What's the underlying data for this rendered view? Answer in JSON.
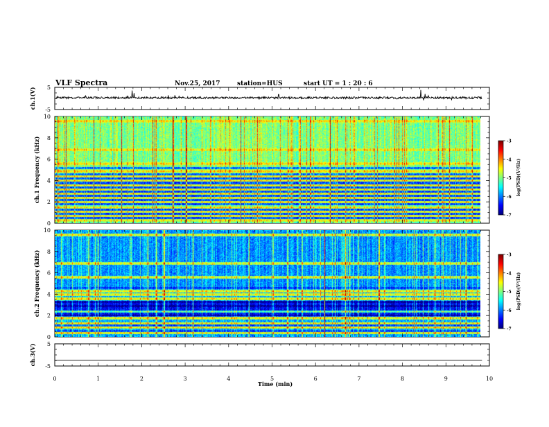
{
  "header": {
    "title": "VLF Spectra",
    "date": "Nov.25, 2017",
    "station": "station=HUS",
    "start": "start  UT =   1 : 20 : 6"
  },
  "chart_data": [
    {
      "type": "line",
      "name": "panel-ch1-waveform",
      "ylabel": "ch.1(V)",
      "ylim": [
        -5,
        5
      ],
      "yticks": [
        "5",
        "-5"
      ],
      "xlim": [
        0,
        10
      ],
      "baseline": 0.3,
      "spikes": [
        {
          "x": 1.78,
          "y": 3.6
        },
        {
          "x": 1.82,
          "y": 2.4
        },
        {
          "x": 5.15,
          "y": 1.8
        },
        {
          "x": 8.42,
          "y": 3.8
        },
        {
          "x": 8.52,
          "y": 2.0
        }
      ]
    },
    {
      "type": "heatmap",
      "name": "panel-ch1-spectrogram",
      "ylabel": "ch.1 Frequency (kHz)",
      "ylim": [
        0,
        10
      ],
      "yticks": [
        "0",
        "2",
        "4",
        "6",
        "8",
        "10"
      ],
      "xlim": [
        0,
        9.83
      ],
      "colorbar": {
        "label": "log(PSD)(V²/Hz)",
        "range": [
          -7,
          -3
        ],
        "ticks": [
          "-3",
          "-4",
          "-5",
          "-6",
          "-7"
        ]
      },
      "bright_lines_khz": [
        0.3,
        0.7,
        1.1,
        1.5,
        2.0,
        2.4,
        2.8,
        3.2,
        3.6,
        4.0,
        4.4,
        4.9,
        5.6,
        6.9,
        9.6
      ],
      "dark_lines_khz": [
        0.5,
        0.9,
        1.3,
        1.8,
        2.2,
        2.6,
        3.0,
        3.4,
        3.8,
        4.2,
        4.6,
        5.2
      ],
      "background_level": -5.3
    },
    {
      "type": "heatmap",
      "name": "panel-ch2-spectrogram",
      "ylabel": "ch.2 Frequency (kHz)",
      "ylim": [
        0,
        10
      ],
      "yticks": [
        "0",
        "2",
        "4",
        "6",
        "8",
        "10"
      ],
      "xlim": [
        0,
        9.83
      ],
      "colorbar": {
        "label": "log(PSD)(V²/Hz)",
        "range": [
          -7,
          -3
        ],
        "ticks": [
          "-3",
          "-4",
          "-5",
          "-6",
          "-7"
        ]
      },
      "bright_lines_khz": [
        0.4,
        0.9,
        1.3,
        1.8,
        2.4,
        3.6,
        4.0,
        4.3,
        5.6,
        6.9,
        9.6
      ],
      "dark_lines_khz": [
        0.6,
        1.1,
        2.0,
        2.9,
        3.3,
        4.6
      ],
      "background_level": -6.0
    },
    {
      "type": "line",
      "name": "panel-ch3-waveform",
      "ylabel": "ch.3(V)",
      "ylim": [
        -5,
        5
      ],
      "yticks": [
        "5",
        "-5"
      ],
      "xlim": [
        0,
        10
      ],
      "baseline": -2.4
    }
  ],
  "time_axis": {
    "xlabel": "Time  (min)",
    "range": [
      0,
      10
    ],
    "ticks": [
      "0",
      "1",
      "2",
      "3",
      "4",
      "5",
      "6",
      "7",
      "8",
      "9",
      "10"
    ]
  },
  "colors": {
    "axes": "#000000",
    "background": "#ffffff"
  }
}
